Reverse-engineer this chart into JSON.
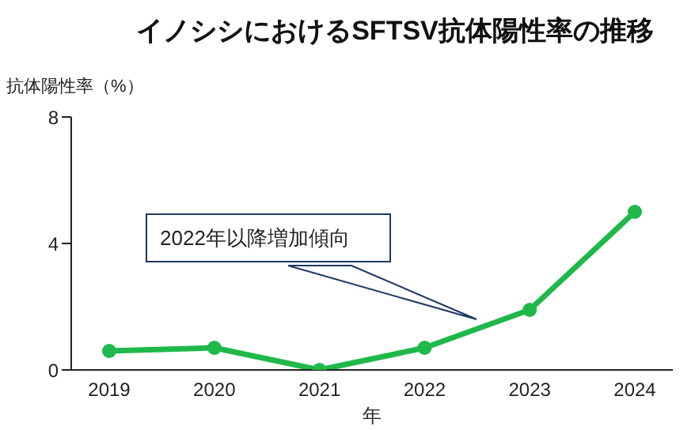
{
  "chart_data": {
    "type": "line",
    "title": "イノシシにおけるSFTSV抗体陽性率の推移",
    "ylabel": "抗体陽性率（%）",
    "xlabel": "年",
    "categories": [
      "2019",
      "2020",
      "2021",
      "2022",
      "2023",
      "2024"
    ],
    "series": [
      {
        "color": "#1fb84a",
        "values": [
          0.6,
          0.7,
          0,
          0.7,
          1.9,
          5.0
        ]
      }
    ],
    "ylim": [
      0,
      8
    ],
    "yticks": [
      0,
      4,
      8
    ],
    "marker": "circle",
    "line_style": "solid",
    "annotations": [
      "2022年以降増加傾向"
    ]
  }
}
